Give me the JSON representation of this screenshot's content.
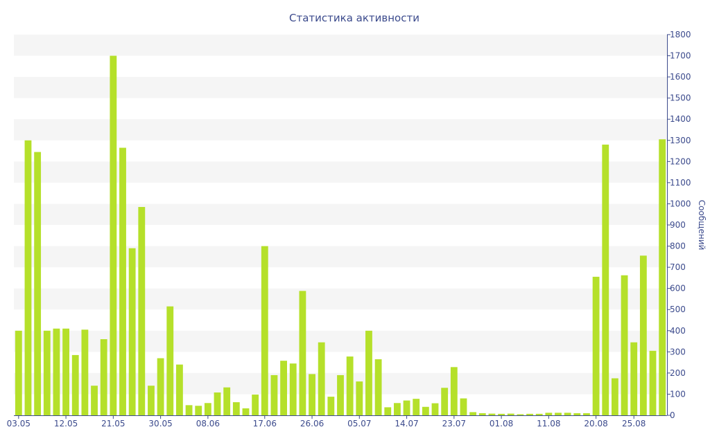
{
  "chart_data": {
    "type": "bar",
    "title": "Статистика активности",
    "xlabel": "",
    "ylabel": "Сообщений",
    "ylim": [
      0,
      1800
    ],
    "y_ticks": [
      0,
      100,
      200,
      300,
      400,
      500,
      600,
      700,
      800,
      900,
      1000,
      1100,
      1200,
      1300,
      1400,
      1500,
      1600,
      1700,
      1800
    ],
    "y_axis_side": "right",
    "grid": "alternating horizontal bands",
    "legend": "none",
    "x_tick_labels": [
      "03.05",
      "12.05",
      "21.05",
      "30.05",
      "08.06",
      "17.06",
      "26.06",
      "05.07",
      "14.07",
      "23.07",
      "01.08",
      "11.08",
      "20.08",
      "25.08"
    ],
    "x_tick_bar_index": [
      0,
      5,
      10,
      15,
      20,
      26,
      31,
      36,
      41,
      46,
      51,
      56,
      61,
      65
    ],
    "values": [
      400,
      1300,
      1245,
      400,
      410,
      410,
      285,
      405,
      140,
      360,
      1700,
      1265,
      790,
      985,
      140,
      270,
      515,
      240,
      48,
      45,
      58,
      108,
      132,
      62,
      33,
      98,
      800,
      190,
      258,
      245,
      588,
      195,
      345,
      88,
      190,
      278,
      160,
      400,
      265,
      38,
      58,
      70,
      78,
      40,
      57,
      130,
      228,
      80,
      15,
      10,
      8,
      7,
      8,
      5,
      7,
      7,
      12,
      12,
      12,
      10,
      10,
      655,
      1280,
      175,
      662,
      345,
      755,
      305,
      1305
    ],
    "colors": {
      "bar": "#b5e02a",
      "band": "#f5f5f5",
      "text": "#3b4a8c",
      "axis": "#3b4a8c"
    }
  }
}
